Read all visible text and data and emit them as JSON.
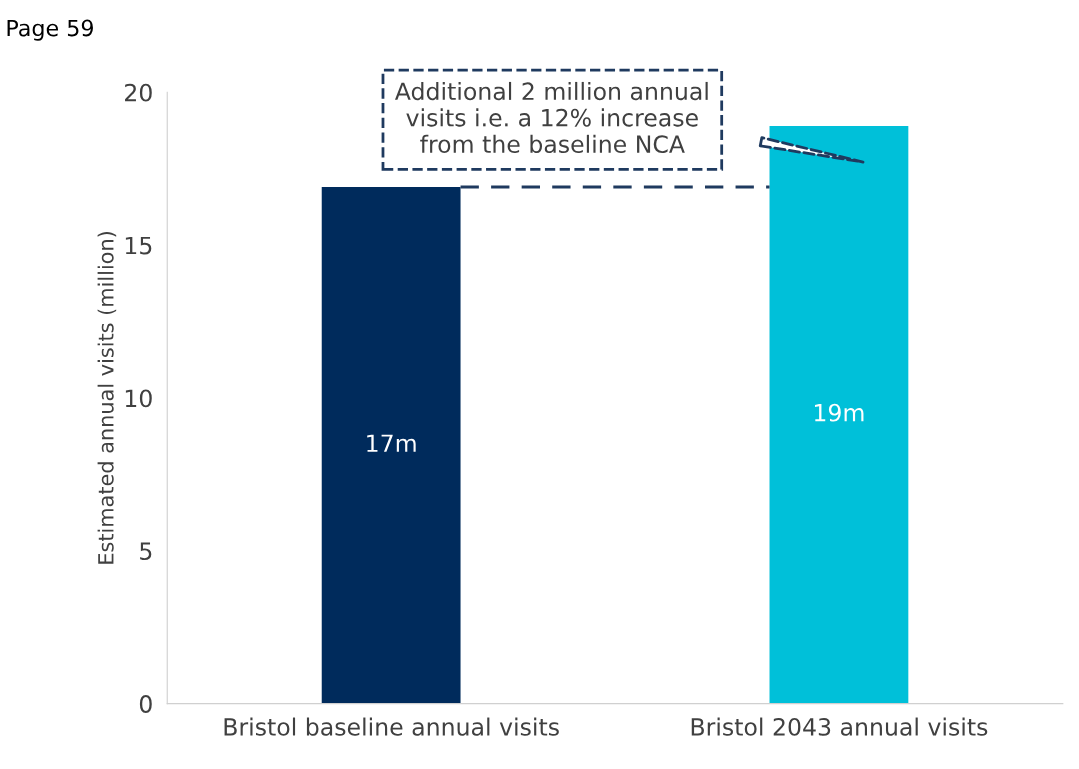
{
  "chart_data": {
    "type": "bar",
    "ylabel": "Estimated annual visits (million)",
    "categories": [
      "Bristol baseline annual visits",
      "Bristol 2043 annual visits"
    ],
    "values": [
      16.9,
      18.9
    ],
    "colors": [
      "#002b5c",
      "#00c0d9"
    ],
    "value_labels": [
      "17m",
      "19m"
    ],
    "ylim": [
      0,
      20
    ],
    "yticks": [
      0,
      5,
      10,
      15,
      20
    ],
    "grid": false,
    "ref_lines": [
      {
        "axis": "y",
        "value": 16.9,
        "color": "#1f3a5f",
        "line_style": "dashed"
      }
    ],
    "annotations": [
      "Additional 2 million annual visits i.e. a 12% increase from the baseline NCA",
      "Page 59"
    ]
  }
}
